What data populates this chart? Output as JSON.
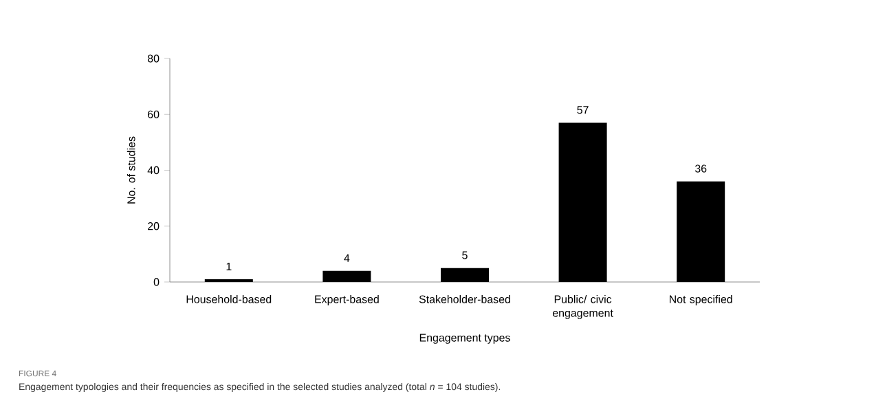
{
  "chart_data": {
    "type": "bar",
    "categories": [
      "Household-based",
      "Expert-based",
      "Stakeholder-based",
      "Public/ civic engagement",
      "Not specified"
    ],
    "values": [
      1,
      4,
      5,
      57,
      36
    ],
    "color": "#000000",
    "xlabel": "Engagement types",
    "ylabel": "No. of studies",
    "ylim": [
      0,
      80
    ],
    "yticks": [
      0,
      20,
      40,
      60,
      80
    ],
    "data_labels": true,
    "grid": false,
    "annotations": [
      "FIGURE 4",
      "Engagement typologies and their frequencies as specified in the selected studies analyzed (total *n* = 104 studies)."
    ]
  }
}
